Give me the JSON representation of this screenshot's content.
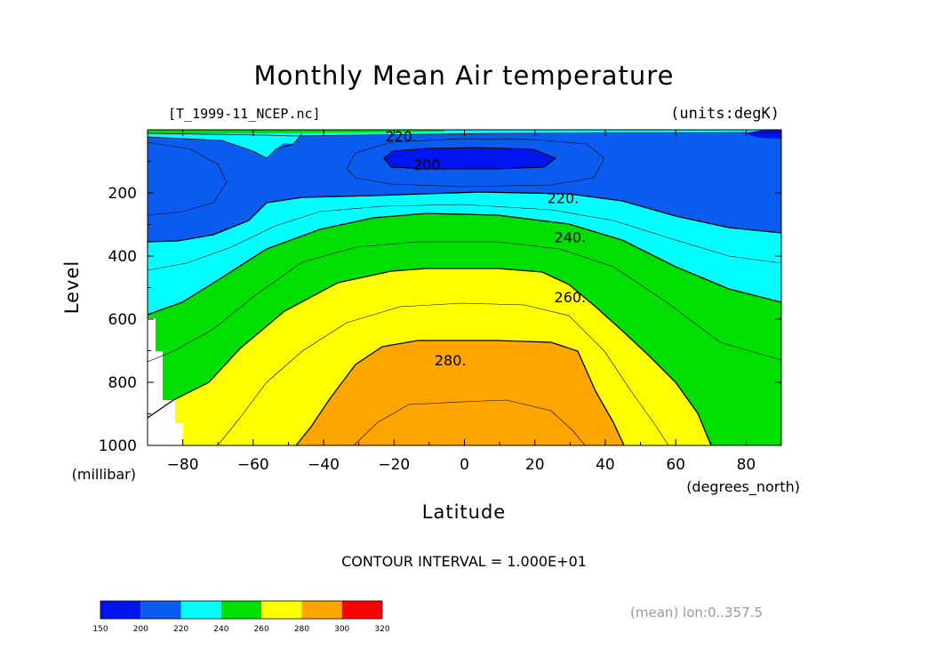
{
  "chart_data": {
    "type": "heatmap",
    "title": "Monthly Mean Air temperature",
    "file_label": "[T_1999-11_NCEP.nc]",
    "units_label": "(units:degK)",
    "xlabel": "Latitude",
    "x_units": "(degrees_north)",
    "ylabel": "Level",
    "y_units": "(millibar)",
    "xlim": [
      -90,
      90
    ],
    "ylim": [
      1000,
      0
    ],
    "y_axis_reversed": true,
    "x_ticks": [
      -80,
      -60,
      -40,
      -20,
      0,
      20,
      40,
      60,
      80
    ],
    "y_ticks": [
      200,
      400,
      600,
      800,
      1000
    ],
    "contour_interval_text": "CONTOUR INTERVAL = 1.000E+01",
    "footer_text": "(mean) lon:0..357.5",
    "contour_labels": [
      {
        "text": "220.",
        "x": -18,
        "y": 20
      },
      {
        "text": "200.",
        "x": -10,
        "y": 110
      },
      {
        "text": "220.",
        "x": 28,
        "y": 215
      },
      {
        "text": "240.",
        "x": 30,
        "y": 340
      },
      {
        "text": "260.",
        "x": 30,
        "y": 530
      },
      {
        "text": "280.",
        "x": -4,
        "y": 730
      }
    ],
    "colorbar": {
      "ticks": [
        150,
        200,
        220,
        240,
        260,
        280,
        300,
        320
      ],
      "colors": [
        "#0014f0",
        "#0a5cf0",
        "#00ffff",
        "#00e000",
        "#ffff00",
        "#ffa500",
        "#ff0000"
      ]
    },
    "colors": {
      "level_190": "#0014f0",
      "level_200": "#0a5cf0",
      "level_220": "#00ffff",
      "level_240": "#00e000",
      "level_260": "#ffff00",
      "level_280": "#ffa500",
      "missing": "#ffffff"
    }
  }
}
